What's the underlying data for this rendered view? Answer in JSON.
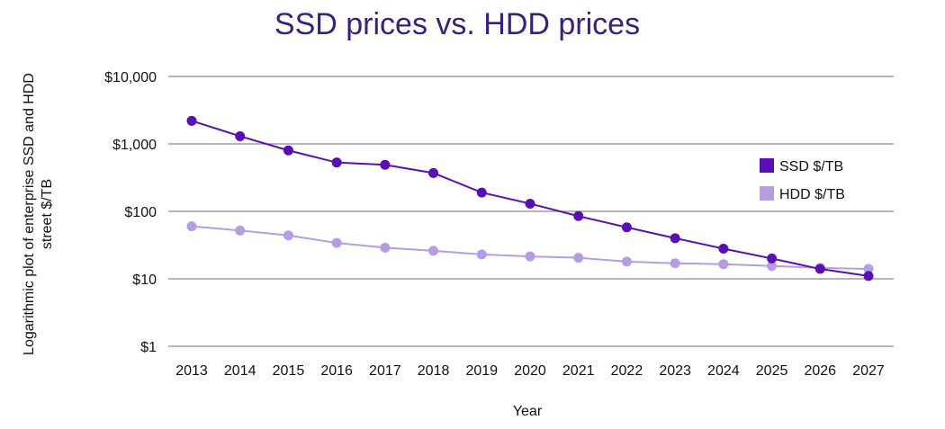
{
  "chart_data": {
    "type": "line",
    "title": "SSD prices vs. HDD prices",
    "xlabel": "Year",
    "ylabel_lines": [
      "Logarithmic plot of enterprise SSD and HDD",
      "street $/TB"
    ],
    "y_scale": "log",
    "ylim": [
      1,
      10000
    ],
    "y_ticks": [
      {
        "value": 10000,
        "label": "$10,000"
      },
      {
        "value": 1000,
        "label": "$1,000"
      },
      {
        "value": 100,
        "label": "$100"
      },
      {
        "value": 10,
        "label": "$10"
      },
      {
        "value": 1,
        "label": "$1"
      }
    ],
    "categories": [
      "2013",
      "2014",
      "2015",
      "2016",
      "2017",
      "2018",
      "2019",
      "2020",
      "2021",
      "2022",
      "2023",
      "2024",
      "2025",
      "2026",
      "2027"
    ],
    "grid": "horizontal",
    "legend_position": "right",
    "series": [
      {
        "name": "SSD $/TB",
        "color": "#5a0fb4",
        "values": [
          2200,
          1300,
          800,
          530,
          490,
          370,
          190,
          130,
          85,
          58,
          40,
          28,
          20,
          14,
          11
        ]
      },
      {
        "name": "HDD $/TB",
        "color": "#b49de0",
        "values": [
          60,
          52,
          44,
          34,
          29,
          26,
          23,
          21.5,
          20.5,
          18,
          17,
          16.5,
          15.5,
          14.5,
          14
        ]
      }
    ]
  },
  "colors": {
    "title": "#3b1f7a",
    "gridline": "#8a8a8a",
    "ssd": "#5a0fb4",
    "hdd": "#b49de0"
  }
}
